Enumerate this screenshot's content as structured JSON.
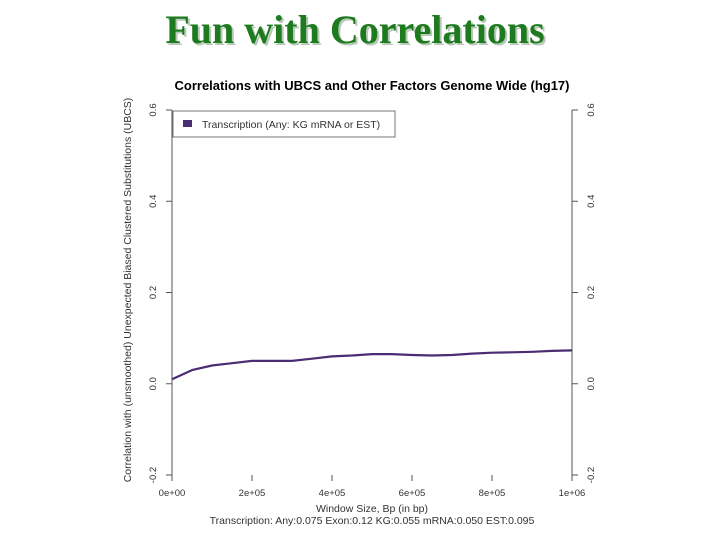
{
  "slide": {
    "title": "Fun with Correlations"
  },
  "chart_data": {
    "type": "line",
    "title": "Correlations with UBCS and Other Factors Genome Wide (hg17)",
    "xlabel": "Window Size, Bp (in bp)",
    "ylabel": "Correlation with (unsmoothed) Unexpected Biased Clustered Substitutions (UBCS)",
    "footnote": "Transcription: Any:0.075  Exon:0.12  KG:0.055  mRNA:0.050  EST:0.095",
    "xlim": [
      0,
      1000000
    ],
    "ylim": [
      -0.2,
      0.6
    ],
    "grid": false,
    "legend_position": "top-left",
    "x_ticks": [
      {
        "value": 0,
        "label": "0e+00"
      },
      {
        "value": 200000,
        "label": "2e+05"
      },
      {
        "value": 400000,
        "label": "4e+05"
      },
      {
        "value": 600000,
        "label": "6e+05"
      },
      {
        "value": 800000,
        "label": "8e+05"
      },
      {
        "value": 1000000,
        "label": "1e+06"
      }
    ],
    "y_ticks": [
      {
        "value": -0.2,
        "label": "-0.2"
      },
      {
        "value": 0.0,
        "label": "0.0"
      },
      {
        "value": 0.2,
        "label": "0.2"
      },
      {
        "value": 0.4,
        "label": "0.4"
      },
      {
        "value": 0.6,
        "label": "0.6"
      }
    ],
    "series": [
      {
        "name": "Transcription (Any: KG mRNA or EST)",
        "color": "#4b2d73",
        "x": [
          0,
          50000,
          100000,
          150000,
          200000,
          250000,
          300000,
          350000,
          400000,
          450000,
          500000,
          550000,
          600000,
          650000,
          700000,
          750000,
          800000,
          850000,
          900000,
          950000,
          1000000
        ],
        "values": [
          0.01,
          0.03,
          0.04,
          0.045,
          0.05,
          0.05,
          0.05,
          0.055,
          0.06,
          0.062,
          0.065,
          0.065,
          0.063,
          0.062,
          0.063,
          0.066,
          0.068,
          0.069,
          0.07,
          0.072,
          0.073
        ]
      }
    ]
  }
}
